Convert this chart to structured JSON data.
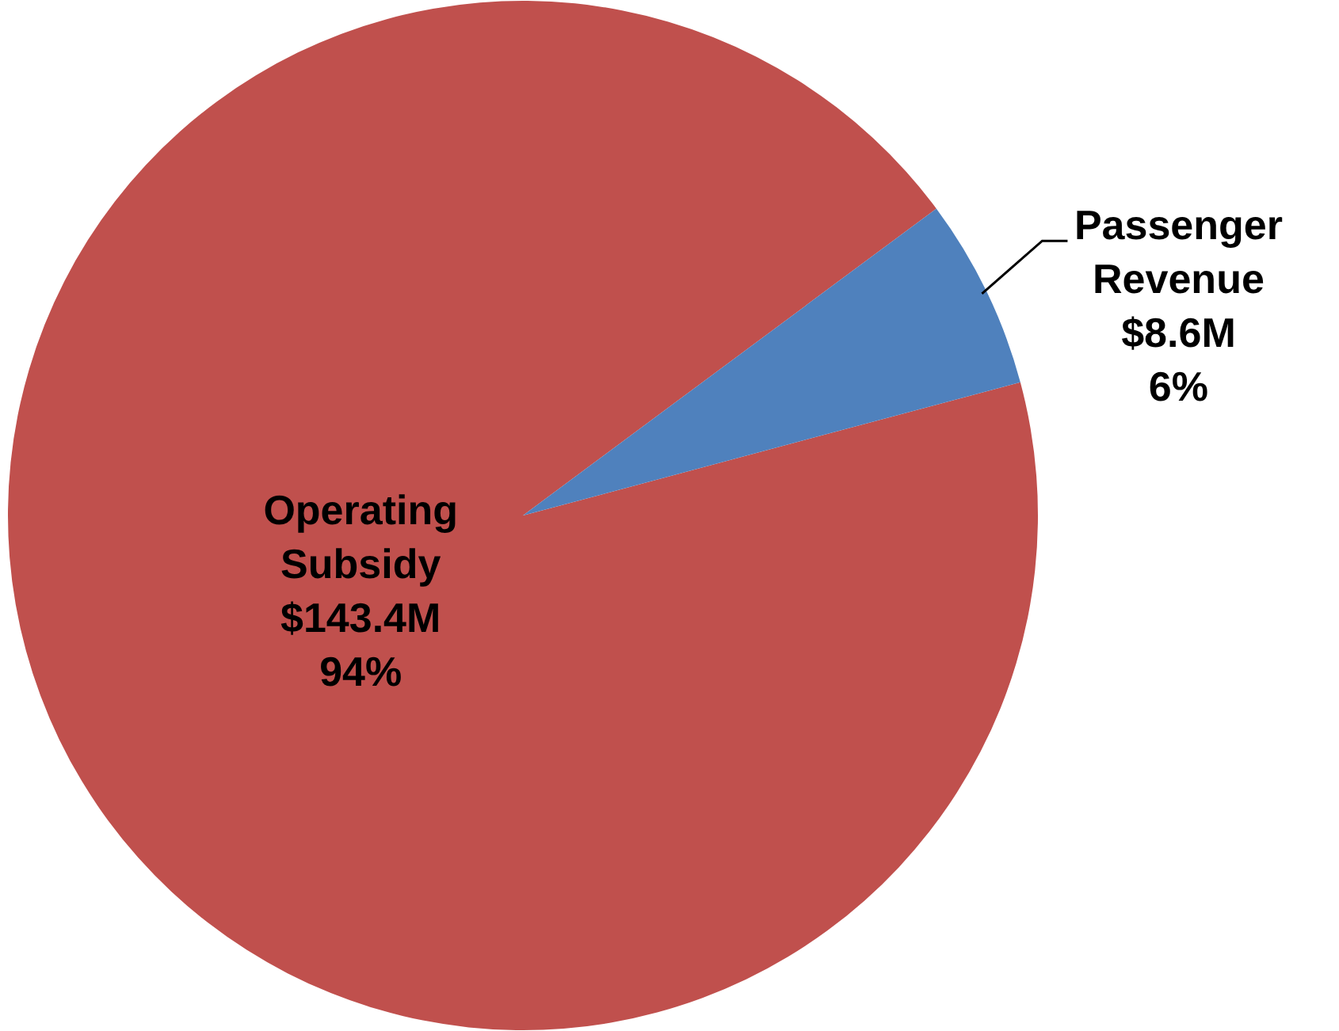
{
  "chart_data": {
    "type": "pie",
    "categories": [
      "Operating Subsidy $143.4M",
      "Passenger Revenue $8.6M"
    ],
    "values": [
      94,
      6
    ],
    "colors": [
      "#c0504d",
      "#4f81bd"
    ],
    "value_labels": [
      "94%",
      "6%"
    ],
    "legend": false
  }
}
